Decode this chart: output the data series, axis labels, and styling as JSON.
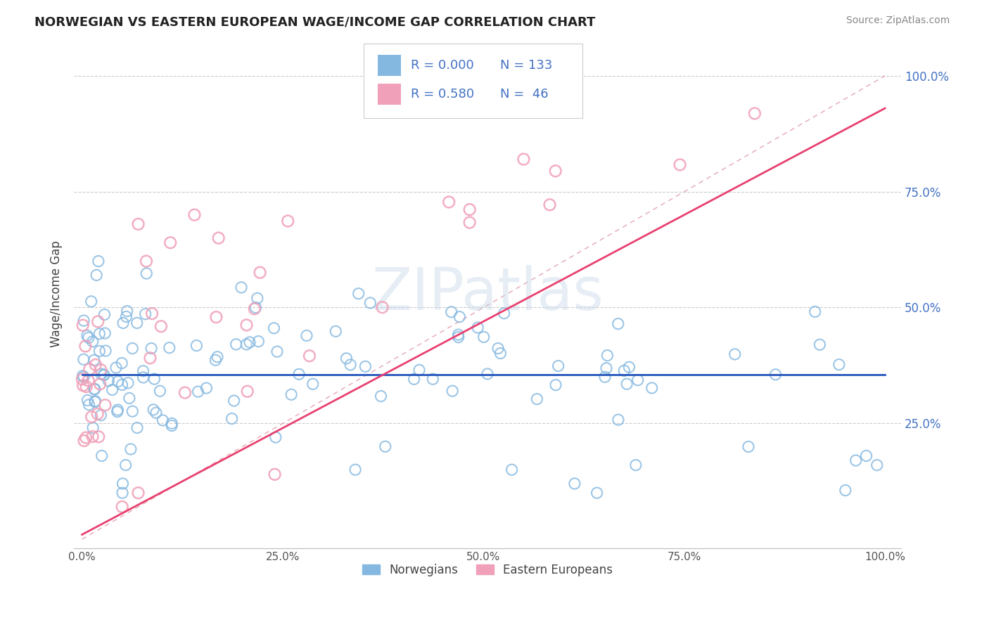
{
  "title": "NORWEGIAN VS EASTERN EUROPEAN WAGE/INCOME GAP CORRELATION CHART",
  "source": "Source: ZipAtlas.com",
  "ylabel": "Wage/Income Gap",
  "watermark": "ZIPatlas",
  "legend_norwegian": "Norwegians",
  "legend_eastern": "Eastern Europeans",
  "r_norwegian": 0.0,
  "n_norwegian": 133,
  "r_eastern": 0.58,
  "n_eastern": 46,
  "ytick_labels": [
    "25.0%",
    "50.0%",
    "75.0%",
    "100.0%"
  ],
  "ytick_values": [
    0.25,
    0.5,
    0.75,
    1.0
  ],
  "xtick_labels": [
    "0.0%",
    "25.0%",
    "50.0%",
    "75.0%",
    "100.0%"
  ],
  "xtick_values": [
    0.0,
    0.25,
    0.5,
    0.75,
    1.0
  ],
  "norwegian_color": "#85b8e0",
  "eastern_color": "#f0a0b8",
  "trend_norwegian_color": "#2255bb",
  "trend_eastern_color": "#e84070",
  "trend_dashed_color": "#e090a0",
  "background_color": "#ffffff",
  "grid_color": "#cccccc",
  "title_color": "#222222",
  "legend_r_color": "#4472c4",
  "nor_trend_y": 0.37,
  "east_trend_start": 0.01,
  "east_trend_end": 0.93
}
